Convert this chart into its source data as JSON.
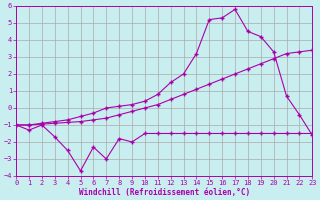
{
  "title": "Windchill (Refroidissement éolien,°C)",
  "background_color": "#c8eef0",
  "grid_color": "#aaaaaa",
  "line_color": "#aa00aa",
  "x_min": 0,
  "x_max": 23,
  "y_min": -4,
  "y_max": 6,
  "x_ticks": [
    0,
    1,
    2,
    3,
    4,
    5,
    6,
    7,
    8,
    9,
    10,
    11,
    12,
    13,
    14,
    15,
    16,
    17,
    18,
    19,
    20,
    21,
    22,
    23
  ],
  "y_ticks": [
    -4,
    -3,
    -2,
    -1,
    0,
    1,
    2,
    3,
    4,
    5,
    6
  ],
  "line1_x": [
    0,
    1,
    2,
    3,
    4,
    5,
    6,
    7,
    8,
    9,
    10,
    11,
    12,
    13,
    14,
    15,
    16,
    17,
    18,
    19,
    20,
    21,
    22,
    23
  ],
  "line1_y": [
    -1.0,
    -1.3,
    -1.0,
    -1.7,
    -2.5,
    -3.7,
    -2.3,
    -3.0,
    -1.8,
    -2.0,
    -1.5,
    -1.5,
    -1.5,
    -1.5,
    -1.5,
    -1.5,
    -1.5,
    -1.5,
    -1.5,
    -1.5,
    -1.5,
    -1.5,
    -1.5,
    -1.5
  ],
  "line2_x": [
    0,
    1,
    2,
    3,
    4,
    5,
    6,
    7,
    8,
    9,
    10,
    11,
    12,
    13,
    14,
    15,
    16,
    17,
    18,
    19,
    20,
    21,
    22,
    23
  ],
  "line2_y": [
    -1.0,
    -1.0,
    -0.9,
    -0.8,
    -0.7,
    -0.5,
    -0.3,
    0.0,
    0.1,
    0.2,
    0.4,
    0.8,
    1.5,
    2.0,
    3.2,
    5.2,
    5.3,
    5.8,
    4.5,
    4.2,
    3.3,
    0.7,
    -0.4,
    -1.6
  ],
  "line3_x": [
    0,
    1,
    2,
    3,
    4,
    5,
    6,
    7,
    8,
    9,
    10,
    11,
    12,
    13,
    14,
    15,
    16,
    17,
    18,
    19,
    20,
    21,
    22,
    23
  ],
  "line3_y": [
    -1.0,
    -1.0,
    -0.95,
    -0.9,
    -0.85,
    -0.8,
    -0.7,
    -0.6,
    -0.4,
    -0.2,
    0.0,
    0.2,
    0.5,
    0.8,
    1.1,
    1.4,
    1.7,
    2.0,
    2.3,
    2.6,
    2.9,
    3.2,
    3.3,
    3.4
  ]
}
